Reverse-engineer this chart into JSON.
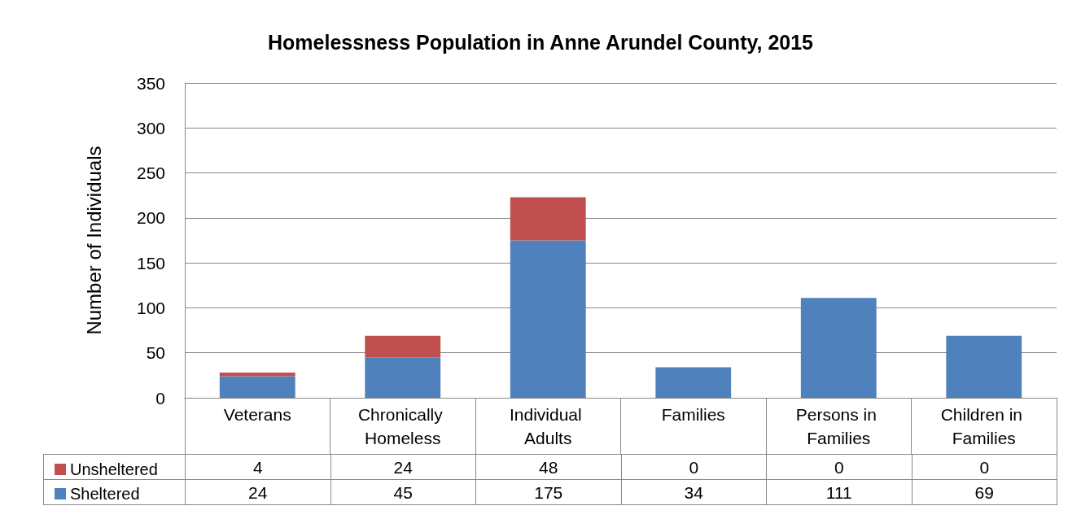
{
  "chart_data": {
    "type": "bar",
    "title": "Homelessness Population in Anne Arundel County, 2015",
    "ylabel": "Number of Individuals",
    "categories": [
      "Veterans",
      "Chronically Homeless",
      "Individual Adults",
      "Families",
      "Persons in Families",
      "Children in Families"
    ],
    "series": [
      {
        "name": "Sheltered",
        "color": "#4f81bd",
        "values": [
          24,
          45,
          175,
          34,
          111,
          69
        ]
      },
      {
        "name": "Unsheltered",
        "color": "#c0504d",
        "values": [
          4,
          24,
          48,
          0,
          0,
          0
        ]
      }
    ],
    "stacked": true,
    "ylim": [
      0,
      350
    ],
    "yticks": [
      0,
      50,
      100,
      150,
      200,
      250,
      300,
      350
    ],
    "grid": "y",
    "legend": "bottom left",
    "data_labels": true
  }
}
